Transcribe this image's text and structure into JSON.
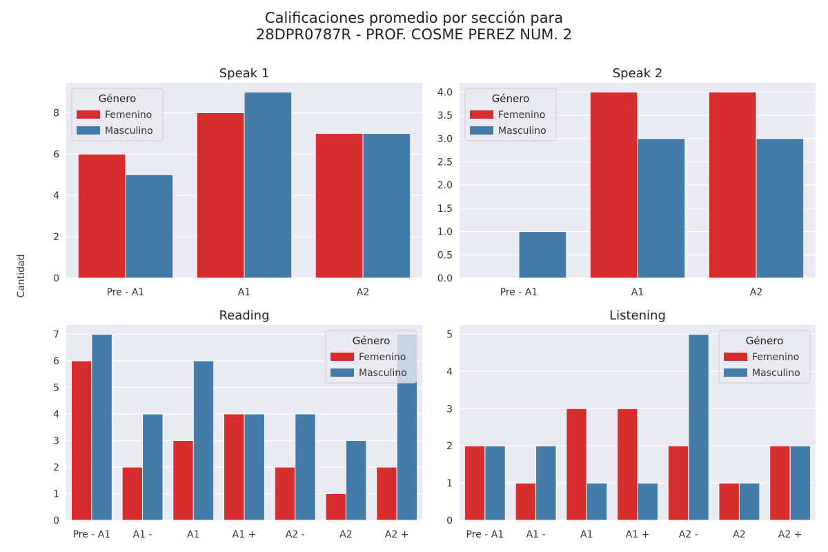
{
  "figure": {
    "title_line1": "Calificaciones promedio por sección para",
    "title_line2": "28DPR0787R - PROF. COSME PEREZ NUM. 2",
    "ylabel": "Cantidad",
    "background": "#eaeaf2",
    "colors": {
      "Femenino": "#d62d2f",
      "Masculino": "#447ba9"
    }
  },
  "chart_data": [
    {
      "type": "bar",
      "title": "Speak 1",
      "categories": [
        "Pre - A1",
        "A1",
        "A2"
      ],
      "series": [
        {
          "name": "Femenino",
          "values": [
            6,
            8,
            7
          ]
        },
        {
          "name": "Masculino",
          "values": [
            5,
            9,
            7
          ]
        }
      ],
      "ylim": [
        0,
        9.45
      ],
      "yticks": [
        "0",
        "2",
        "4",
        "6",
        "8"
      ],
      "ytick_values": [
        0,
        2,
        4,
        6,
        8
      ],
      "legend": {
        "title": "Género",
        "placement": "top-left"
      }
    },
    {
      "type": "bar",
      "title": "Speak 2",
      "categories": [
        "Pre - A1",
        "A1",
        "A2"
      ],
      "series": [
        {
          "name": "Femenino",
          "values": [
            0,
            4,
            4
          ]
        },
        {
          "name": "Masculino",
          "values": [
            1,
            3,
            3
          ]
        }
      ],
      "ylim": [
        0,
        4.2
      ],
      "yticks": [
        "0.0",
        "0.5",
        "1.0",
        "1.5",
        "2.0",
        "2.5",
        "3.0",
        "3.5",
        "4.0"
      ],
      "ytick_values": [
        0,
        0.5,
        1,
        1.5,
        2,
        2.5,
        3,
        3.5,
        4
      ],
      "legend": {
        "title": "Género",
        "placement": "top-left"
      }
    },
    {
      "type": "bar",
      "title": "Reading",
      "categories": [
        "Pre - A1",
        "A1 -",
        "A1",
        "A1 +",
        "A2 -",
        "A2",
        "A2 +"
      ],
      "series": [
        {
          "name": "Femenino",
          "values": [
            6,
            2,
            3,
            4,
            2,
            1,
            2
          ]
        },
        {
          "name": "Masculino",
          "values": [
            7,
            4,
            6,
            4,
            4,
            3,
            7
          ]
        }
      ],
      "ylim": [
        0,
        7.35
      ],
      "yticks": [
        "0",
        "1",
        "2",
        "3",
        "4",
        "5",
        "6",
        "7"
      ],
      "ytick_values": [
        0,
        1,
        2,
        3,
        4,
        5,
        6,
        7
      ],
      "legend": {
        "title": "Género",
        "placement": "top-right"
      }
    },
    {
      "type": "bar",
      "title": "Listening",
      "categories": [
        "Pre - A1",
        "A1 -",
        "A1",
        "A1 +",
        "A2 -",
        "A2",
        "A2 +"
      ],
      "series": [
        {
          "name": "Femenino",
          "values": [
            2,
            1,
            3,
            3,
            2,
            1,
            2
          ]
        },
        {
          "name": "Masculino",
          "values": [
            2,
            2,
            1,
            1,
            5,
            1,
            2
          ]
        }
      ],
      "ylim": [
        0,
        5.25
      ],
      "yticks": [
        "0",
        "1",
        "2",
        "3",
        "4",
        "5"
      ],
      "ytick_values": [
        0,
        1,
        2,
        3,
        4,
        5
      ],
      "legend": {
        "title": "Género",
        "placement": "top-right"
      }
    }
  ]
}
